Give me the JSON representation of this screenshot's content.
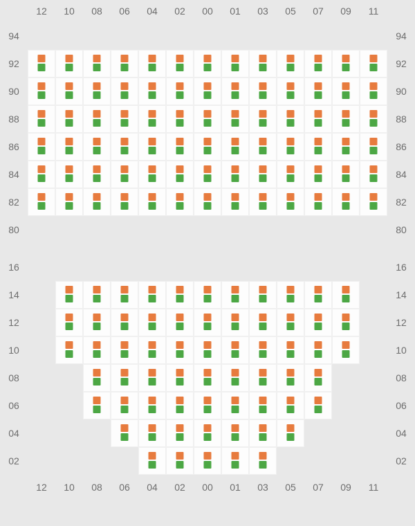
{
  "colors": {
    "background": "#000000",
    "panel_bg": "#e8e8e8",
    "cell_bg": "#fdfdfd",
    "cell_border": "#f0f0f0",
    "label_text": "#6d6d6d",
    "marker_orange": "#e77b3e",
    "marker_green": "#4ca744"
  },
  "layout": {
    "cell_size": 40,
    "marker_size": 11,
    "cols": [
      "12",
      "10",
      "08",
      "06",
      "04",
      "02",
      "00",
      "01",
      "03",
      "05",
      "07",
      "09",
      "11"
    ]
  },
  "top_panel": {
    "row_labels": [
      "94",
      "92",
      "90",
      "88",
      "86",
      "84",
      "82",
      "80"
    ],
    "rows": [
      {
        "r": "94",
        "cells": [
          "e",
          "e",
          "e",
          "e",
          "e",
          "e",
          "e",
          "e",
          "e",
          "e",
          "e",
          "e",
          "e"
        ]
      },
      {
        "r": "92",
        "cells": [
          "a",
          "a",
          "a",
          "a",
          "a",
          "a",
          "a",
          "a",
          "a",
          "a",
          "a",
          "a",
          "a"
        ]
      },
      {
        "r": "90",
        "cells": [
          "a",
          "a",
          "a",
          "a",
          "a",
          "a",
          "a",
          "a",
          "a",
          "a",
          "a",
          "a",
          "a"
        ]
      },
      {
        "r": "88",
        "cells": [
          "a",
          "a",
          "a",
          "a",
          "a",
          "a",
          "a",
          "a",
          "a",
          "a",
          "a",
          "a",
          "a"
        ]
      },
      {
        "r": "86",
        "cells": [
          "a",
          "a",
          "a",
          "a",
          "a",
          "a",
          "a",
          "a",
          "a",
          "a",
          "a",
          "a",
          "a"
        ]
      },
      {
        "r": "84",
        "cells": [
          "a",
          "a",
          "a",
          "a",
          "a",
          "a",
          "a",
          "a",
          "a",
          "a",
          "a",
          "a",
          "a"
        ]
      },
      {
        "r": "82",
        "cells": [
          "a",
          "a",
          "a",
          "a",
          "a",
          "a",
          "a",
          "a",
          "a",
          "a",
          "a",
          "a",
          "a"
        ]
      },
      {
        "r": "80",
        "cells": [
          "e",
          "e",
          "e",
          "e",
          "e",
          "e",
          "e",
          "e",
          "e",
          "e",
          "e",
          "e",
          "e"
        ]
      }
    ]
  },
  "bottom_panel": {
    "row_labels": [
      "16",
      "14",
      "12",
      "10",
      "08",
      "06",
      "04",
      "02"
    ],
    "rows": [
      {
        "r": "16",
        "cells": [
          "e",
          "e",
          "e",
          "e",
          "e",
          "e",
          "e",
          "e",
          "e",
          "e",
          "e",
          "e",
          "e"
        ]
      },
      {
        "r": "14",
        "cells": [
          "e",
          "a",
          "a",
          "a",
          "a",
          "a",
          "a",
          "a",
          "a",
          "a",
          "a",
          "a",
          "e"
        ]
      },
      {
        "r": "12",
        "cells": [
          "e",
          "a",
          "a",
          "a",
          "a",
          "a",
          "a",
          "a",
          "a",
          "a",
          "a",
          "a",
          "e"
        ]
      },
      {
        "r": "10",
        "cells": [
          "e",
          "a",
          "a",
          "a",
          "a",
          "a",
          "a",
          "a",
          "a",
          "a",
          "a",
          "a",
          "e"
        ]
      },
      {
        "r": "08",
        "cells": [
          "e",
          "e",
          "a",
          "a",
          "a",
          "a",
          "a",
          "a",
          "a",
          "a",
          "a",
          "e",
          "e"
        ]
      },
      {
        "r": "06",
        "cells": [
          "e",
          "e",
          "a",
          "a",
          "a",
          "a",
          "a",
          "a",
          "a",
          "a",
          "a",
          "e",
          "e"
        ]
      },
      {
        "r": "04",
        "cells": [
          "e",
          "e",
          "e",
          "a",
          "a",
          "a",
          "a",
          "a",
          "a",
          "a",
          "e",
          "e",
          "e"
        ]
      },
      {
        "r": "02",
        "cells": [
          "e",
          "e",
          "e",
          "e",
          "a",
          "a",
          "a",
          "a",
          "a",
          "e",
          "e",
          "e",
          "e"
        ]
      }
    ]
  }
}
